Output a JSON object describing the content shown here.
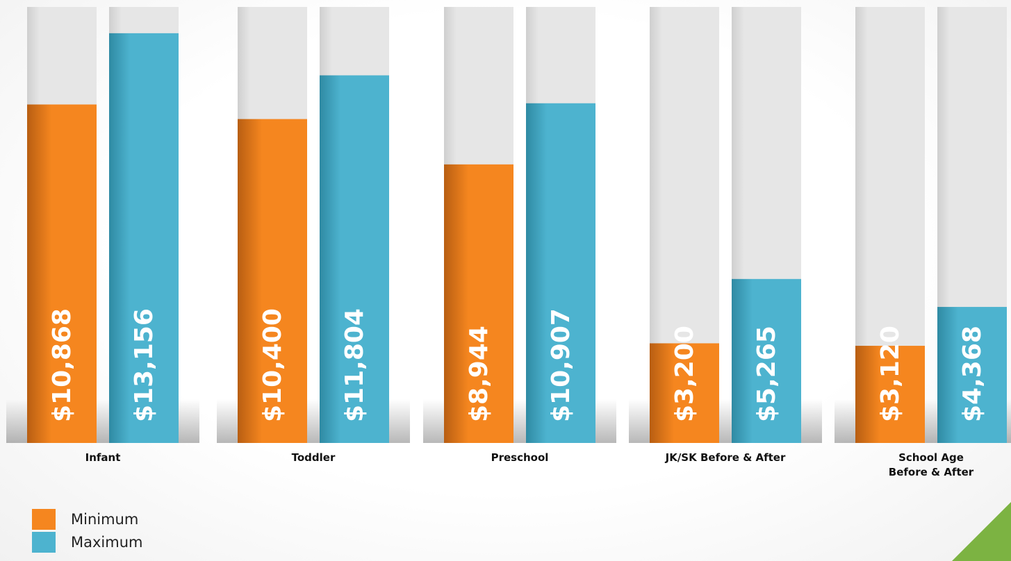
{
  "chart_data": {
    "type": "bar",
    "categories": [
      "Infant",
      "Toddler",
      "Preschool",
      "JK/SK Before & After",
      "School Age\nBefore & After"
    ],
    "series": [
      {
        "name": "Minimum",
        "values": [
          10868,
          10400,
          8944,
          3200,
          3120
        ],
        "labels": [
          "$10,868",
          "$10,400",
          "$8,944",
          "$3,200",
          "$3,120"
        ]
      },
      {
        "name": "Maximum",
        "values": [
          13156,
          11804,
          10907,
          5265,
          4368
        ],
        "labels": [
          "$13,156",
          "$11,804",
          "$10,907",
          "$5,265",
          "$4,368"
        ]
      }
    ],
    "ylim": [
      0,
      14000
    ],
    "legend": "bottom-left",
    "grid": false
  },
  "colors": {
    "minimum": "#f5861f",
    "maximum": "#4db3cf",
    "track": "#e6e6e6",
    "accent": "#7cb342"
  }
}
